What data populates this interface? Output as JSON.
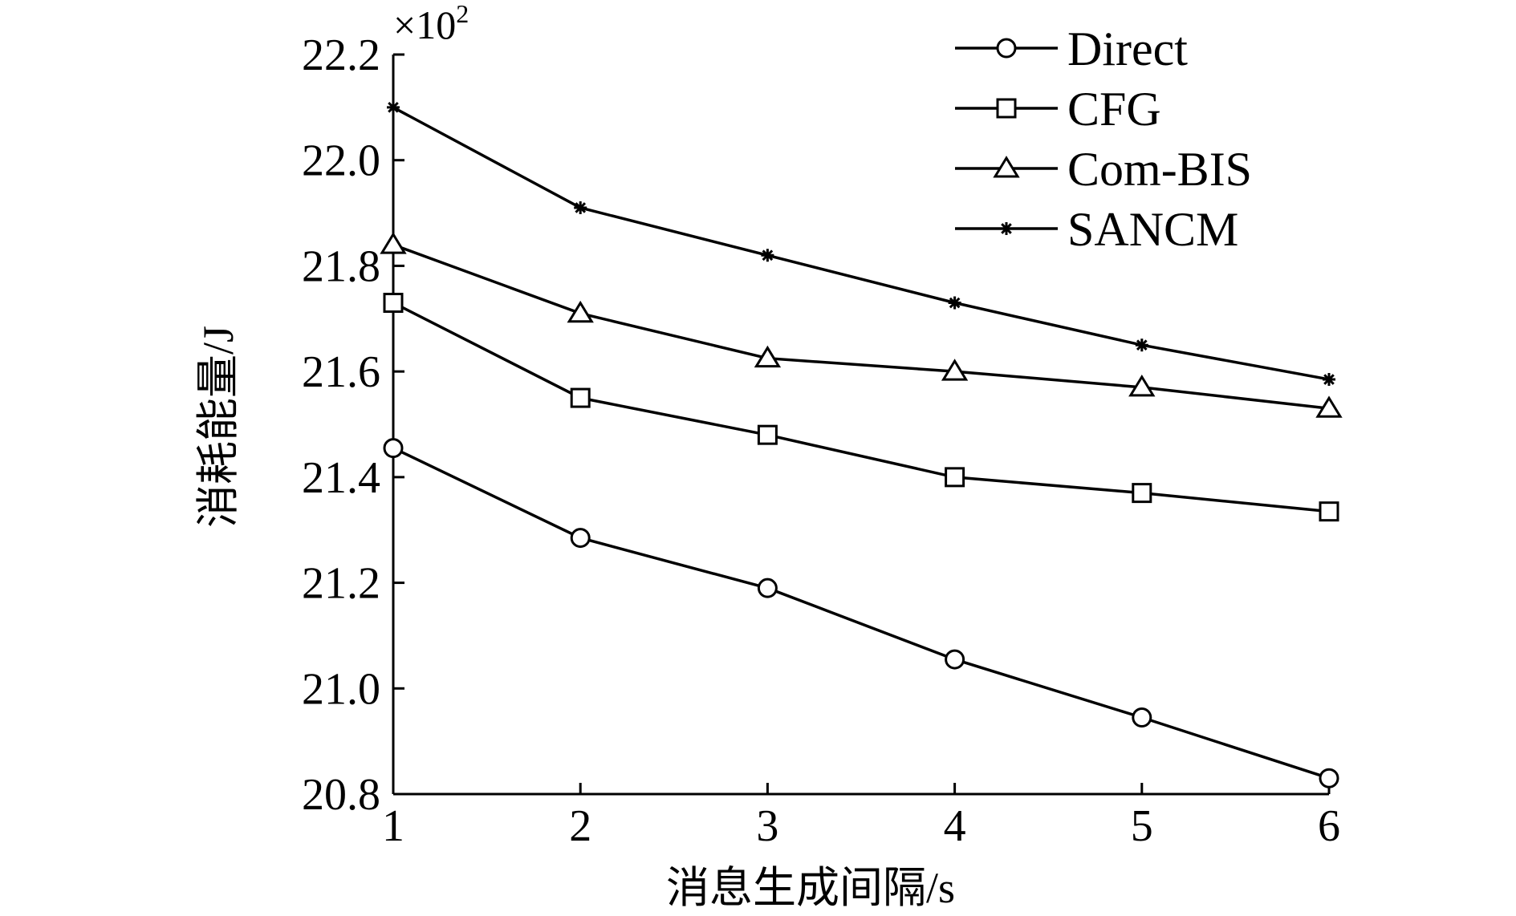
{
  "chart_data": {
    "type": "line",
    "title": "",
    "xlabel": "消息生成间隔/s",
    "ylabel": "消耗能量/J",
    "y_scale_note": "×10",
    "y_scale_exponent": "2",
    "x": [
      1,
      2,
      3,
      4,
      5,
      6
    ],
    "x_ticks": [
      "1",
      "2",
      "3",
      "4",
      "5",
      "6"
    ],
    "xlim": [
      1,
      6
    ],
    "ylim": [
      20.8,
      22.2
    ],
    "y_ticks": [
      "20.8",
      "21.0",
      "21.2",
      "21.4",
      "21.6",
      "21.8",
      "22.0",
      "22.2"
    ],
    "grid": false,
    "legend_position": "top-right",
    "series": [
      {
        "name": "Direct",
        "marker": "circle",
        "values": [
          21.455,
          21.285,
          21.19,
          21.055,
          20.945,
          20.83
        ]
      },
      {
        "name": "CFG",
        "marker": "square",
        "values": [
          21.73,
          21.55,
          21.48,
          21.4,
          21.37,
          21.335
        ]
      },
      {
        "name": "Com-BIS",
        "marker": "triangle",
        "values": [
          21.84,
          21.71,
          21.625,
          21.6,
          21.57,
          21.53
        ]
      },
      {
        "name": "SANCM",
        "marker": "star",
        "values": [
          22.1,
          21.91,
          21.82,
          21.73,
          21.65,
          21.585
        ]
      }
    ]
  }
}
